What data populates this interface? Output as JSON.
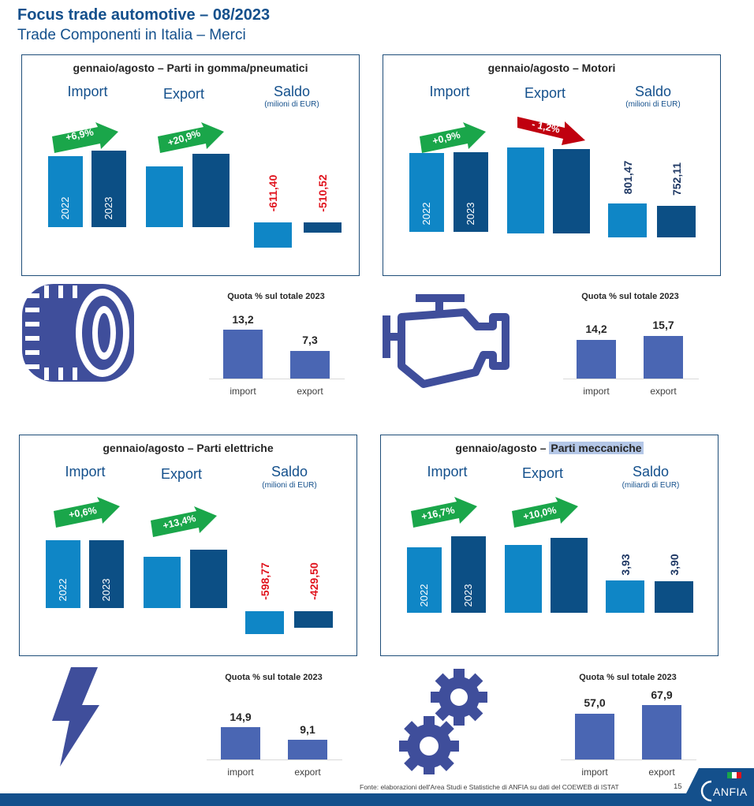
{
  "header": {
    "title": "Focus trade automotive – 08/2023",
    "subtitle": "Trade Componenti in Italia – Merci"
  },
  "labels": {
    "import": "Import",
    "export": "Export",
    "saldo": "Saldo",
    "y2022": "2022",
    "y2023": "2023",
    "quota_title": "Quota % sul totale 2023",
    "q_import": "import",
    "q_export": "export"
  },
  "panels": {
    "gomma": {
      "title_prefix": "gennaio/agosto – ",
      "title_main": "Parti in gomma/pneumatici",
      "unit": "(milioni di EUR)",
      "import_change": "+6,9%",
      "export_change": "+20,9%",
      "saldo_2022": "-611,40",
      "saldo_2023": "-510,52"
    },
    "motori": {
      "title_prefix": "gennaio/agosto – ",
      "title_main": "Motori",
      "unit": "(milioni di EUR)",
      "import_change": "+0,9%",
      "export_change": "- 1,2%",
      "saldo_2022": "801,47",
      "saldo_2023": "752,11"
    },
    "elettriche": {
      "title_prefix": "gennaio/agosto – ",
      "title_main": "Parti elettriche",
      "unit": "(milioni di EUR)",
      "import_change": "+0,6%",
      "export_change": "+13,4%",
      "saldo_2022": "-598,77",
      "saldo_2023": "-429,50"
    },
    "meccaniche": {
      "title_prefix": "gennaio/agosto – ",
      "title_main": "Parti meccaniche",
      "unit": "(miliardi di EUR)",
      "import_change": "+16,7%",
      "export_change": "+10,0%",
      "saldo_2022": "3,93",
      "saldo_2023": "3,90"
    }
  },
  "quota": {
    "gomma": {
      "import": "13,2",
      "export": "7,3"
    },
    "motori": {
      "import": "14,2",
      "export": "15,7"
    },
    "elettriche": {
      "import": "14,9",
      "export": "9,1"
    },
    "meccaniche": {
      "import": "57,0",
      "export": "67,9"
    }
  },
  "colors": {
    "bar_2022": "#0f86c6",
    "bar_2023": "#0c4f85",
    "increase_arrow": "#1aa64a",
    "decrease_arrow": "#c0000f",
    "negative_value": "#e0141e",
    "quota_bar": "#4a66b3",
    "icon": "#3f4e9b"
  },
  "icons": [
    "tyre-icon",
    "engine-icon",
    "lightning-icon",
    "gears-icon",
    "anfia-logo"
  ],
  "footer": {
    "source": "Fonte: elaborazioni dell'Area Studi e Statistiche di ANFIA su dati del COEWEB di ISTAT",
    "page": "15",
    "logo_text": "ANFIA"
  }
}
